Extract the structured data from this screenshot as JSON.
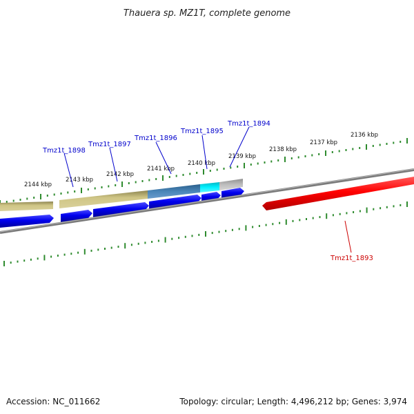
{
  "title": "Thauera sp. MZ1T, complete genome",
  "footer": {
    "accession": "Accession: NC_011662",
    "topology": "Topology: circular; Length: 4,496,212 bp; Genes: 3,974"
  },
  "scale_labels": [
    "2144 kbp",
    "2143 kbp",
    "2142 kbp",
    "2141 kbp",
    "2140 kbp",
    "2139 kbp",
    "2138 kbp",
    "2137 kbp",
    "2136 kbp"
  ],
  "genes": [
    {
      "name": "Tmz1t_1898",
      "color": "#0000cc"
    },
    {
      "name": "Tmz1t_1897",
      "color": "#0000cc"
    },
    {
      "name": "Tmz1t_1896",
      "color": "#0000cc"
    },
    {
      "name": "Tmz1t_1895",
      "color": "#0000cc"
    },
    {
      "name": "Tmz1t_1894",
      "color": "#0000cc"
    },
    {
      "name": "Tmz1t_1893",
      "color": "#cc0000"
    }
  ],
  "colors": {
    "forward_gene": "#0000ee",
    "reverse_gene": "#ff0000",
    "backbone": "#808080",
    "tick": "#2e8b2e",
    "band_olive": "#c8bd78",
    "band_steel": "#4682b4",
    "band_cyan": "#00e5ee",
    "band_grey": "#b4b4b4"
  }
}
